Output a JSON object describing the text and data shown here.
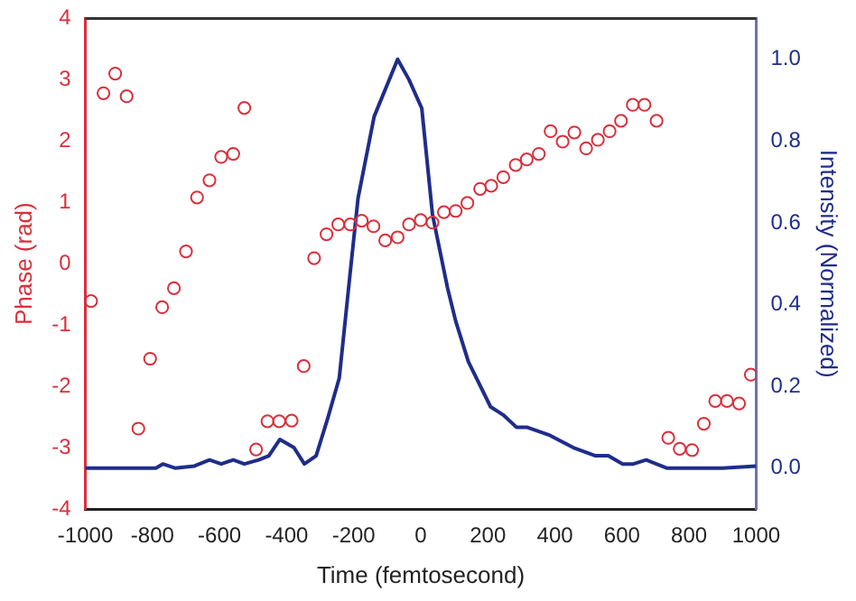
{
  "chart_data": {
    "type": "scatter",
    "xlabel": "Time (femtosecond)",
    "ylabel": "Phase (rad)",
    "y2label": "Intensity (Normalized)",
    "xlim": [
      -1000,
      1000
    ],
    "xticks": [
      -1000,
      -800,
      -600,
      -400,
      -200,
      0,
      200,
      400,
      600,
      800,
      1000
    ],
    "ylim": [
      -4,
      4
    ],
    "yticks": [
      -4,
      -3,
      -2,
      -1,
      0,
      1,
      2,
      3,
      4
    ],
    "y2lim": [
      -0.1,
      1.1
    ],
    "y2ticks": [
      {
        "value": 0,
        "label": "0.0"
      },
      {
        "value": 0.2,
        "label": "0.2"
      },
      {
        "value": 0.4,
        "label": "0.4"
      },
      {
        "value": 0.6,
        "label": "0.6"
      },
      {
        "value": 0.8,
        "label": "0.8"
      },
      {
        "value": 1,
        "label": "1.0"
      }
    ],
    "grid": false,
    "legend": false,
    "series": [
      {
        "color": "#d9303c",
        "marker": "circle",
        "x": [
          -983,
          -946,
          -911,
          -877,
          -842,
          -807,
          -771,
          -736,
          -700,
          -667,
          -630,
          -595,
          -559,
          -526,
          -491,
          -457,
          -422,
          -385,
          -349,
          -318,
          -281,
          -246,
          -210,
          -176,
          -141,
          -106,
          -69,
          -35,
          0,
          35,
          69,
          104,
          139,
          177,
          210,
          246,
          283,
          316,
          352,
          387,
          423,
          458,
          493,
          528,
          563,
          597,
          632,
          667,
          703,
          738,
          772,
          809,
          844,
          878,
          913,
          949,
          984
        ],
        "values": [
          -0.61,
          2.78,
          3.1,
          2.73,
          -2.69,
          -1.55,
          -0.71,
          -0.4,
          0.2,
          1.08,
          1.36,
          1.74,
          1.79,
          2.54,
          -3.03,
          -2.57,
          -2.57,
          -2.56,
          -1.67,
          0.09,
          0.48,
          0.64,
          0.64,
          0.7,
          0.61,
          0.38,
          0.43,
          0.64,
          0.71,
          0.67,
          0.84,
          0.86,
          0.99,
          1.22,
          1.27,
          1.41,
          1.61,
          1.7,
          1.79,
          2.16,
          1.99,
          2.14,
          1.88,
          2.02,
          2.16,
          2.33,
          2.59,
          2.59,
          2.33,
          -2.84,
          -3.02,
          -3.04,
          -2.61,
          -2.24,
          -2.24,
          -2.28,
          -1.81
        ]
      },
      {
        "type": "line",
        "axis": "y2",
        "color": "#1f2d8a",
        "marker": "none",
        "line_style": "solid",
        "x": [
          -1000,
          -830,
          -790,
          -769,
          -733,
          -675,
          -630,
          -595,
          -559,
          -526,
          -483,
          -453,
          -420,
          -378,
          -347,
          -312,
          -278,
          -243,
          -214,
          -187,
          -139,
          -69,
          -35,
          3,
          35,
          80,
          104,
          142,
          208,
          246,
          285,
          316,
          385,
          455,
          521,
          559,
          602,
          634,
          672,
          733,
          900,
          1000
        ],
        "values": [
          0,
          0,
          0,
          0.01,
          0,
          0.005,
          0.02,
          0.01,
          0.02,
          0.01,
          0.02,
          0.03,
          0.07,
          0.05,
          0.01,
          0.03,
          0.12,
          0.22,
          0.45,
          0.66,
          0.86,
          1.0,
          0.95,
          0.88,
          0.62,
          0.44,
          0.36,
          0.26,
          0.15,
          0.13,
          0.1,
          0.1,
          0.08,
          0.05,
          0.03,
          0.03,
          0.01,
          0.01,
          0.02,
          0,
          0,
          0.005
        ]
      }
    ]
  }
}
